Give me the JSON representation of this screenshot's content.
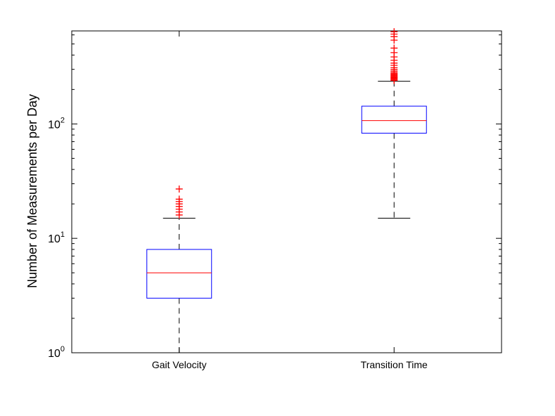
{
  "chart_data": {
    "type": "box",
    "ylabel": "Number of Measurements per Day",
    "yscale": "log",
    "ylim": [
      1,
      650
    ],
    "y_ticks": [
      {
        "value": 1,
        "base": "10",
        "exp": "0"
      },
      {
        "value": 10,
        "base": "10",
        "exp": "1"
      },
      {
        "value": 100,
        "base": "10",
        "exp": "2"
      }
    ],
    "categories": [
      "Gait Velocity",
      "Transition Time"
    ],
    "boxes": [
      {
        "name": "Gait Velocity",
        "whisker_low": 1,
        "q1": 3,
        "median": 5,
        "q3": 8,
        "whisker_high": 15,
        "outliers": [
          16,
          17,
          18,
          19,
          20,
          21,
          22,
          27
        ]
      },
      {
        "name": "Transition Time",
        "whisker_low": 15,
        "q1": 83,
        "median": 107,
        "q3": 143,
        "whisker_high": 236,
        "outliers": [
          240,
          244,
          248,
          252,
          256,
          260,
          265,
          270,
          275,
          282,
          290,
          300,
          310,
          325,
          340,
          360,
          385,
          420,
          460,
          540,
          580,
          610,
          640
        ]
      }
    ],
    "colors": {
      "box": "#0000ff",
      "median": "#ff0000",
      "outlier": "#ff0000",
      "whisker": "#000000"
    },
    "grid": false,
    "legend": "none"
  }
}
